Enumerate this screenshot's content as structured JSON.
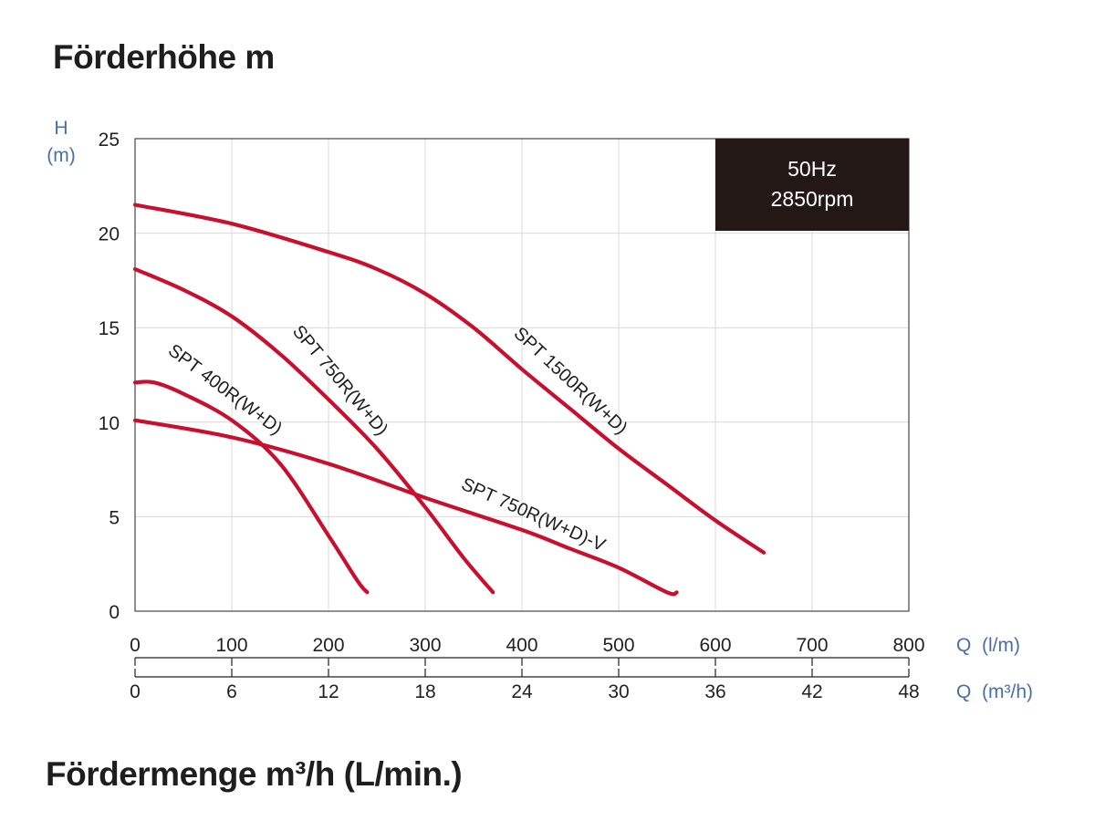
{
  "page": {
    "top_title": "Förderhöhe m",
    "bottom_title": "Fördermenge m³/h (L/min.)"
  },
  "chart_data": {
    "type": "line",
    "y_axis": {
      "label_line1": "H",
      "label_line2": "(m)",
      "range": [
        0,
        25
      ],
      "ticks": [
        0,
        5,
        10,
        15,
        20,
        25
      ]
    },
    "x_axis_primary": {
      "label": "Q  (l/m)",
      "range": [
        0,
        800
      ],
      "ticks": [
        0,
        100,
        200,
        300,
        400,
        500,
        600,
        700,
        800
      ]
    },
    "x_axis_secondary": {
      "label": "Q  (m³/h)",
      "range": [
        0,
        48
      ],
      "ticks": [
        0,
        6,
        12,
        18,
        24,
        30,
        36,
        42,
        48
      ]
    },
    "grid": true,
    "info_box": {
      "line1": "50Hz",
      "line2": "2850rpm",
      "background": "#231815",
      "text_color": "#ffffff",
      "position": "top-right"
    },
    "axis_label_color": "#4a6ea8",
    "series": [
      {
        "name": "SPT 400R(W+D)",
        "color": "#c8102e",
        "points": [
          [
            0,
            12.1
          ],
          [
            20,
            12.1
          ],
          [
            50,
            11.5
          ],
          [
            100,
            10.1
          ],
          [
            150,
            7.8
          ],
          [
            200,
            4.0
          ],
          [
            230,
            1.6
          ],
          [
            240,
            1.0
          ]
        ]
      },
      {
        "name": "SPT 750R(W+D)",
        "color": "#c8102e",
        "points": [
          [
            0,
            18.1
          ],
          [
            50,
            17.0
          ],
          [
            100,
            15.6
          ],
          [
            150,
            13.6
          ],
          [
            200,
            11.2
          ],
          [
            250,
            8.6
          ],
          [
            300,
            5.5
          ],
          [
            340,
            2.8
          ],
          [
            370,
            1.0
          ]
        ]
      },
      {
        "name": "SPT 750R(W+D)-V",
        "color": "#c8102e",
        "points": [
          [
            0,
            10.1
          ],
          [
            100,
            9.2
          ],
          [
            200,
            7.8
          ],
          [
            300,
            6.0
          ],
          [
            400,
            4.3
          ],
          [
            450,
            3.3
          ],
          [
            500,
            2.3
          ],
          [
            550,
            1.0
          ],
          [
            560,
            1.0
          ]
        ]
      },
      {
        "name": "SPT 1500R(W+D)",
        "color": "#c8102e",
        "points": [
          [
            0,
            21.5
          ],
          [
            100,
            20.5
          ],
          [
            200,
            19.0
          ],
          [
            250,
            18.1
          ],
          [
            300,
            16.8
          ],
          [
            350,
            15.0
          ],
          [
            400,
            12.8
          ],
          [
            450,
            10.7
          ],
          [
            500,
            8.6
          ],
          [
            550,
            6.7
          ],
          [
            600,
            4.8
          ],
          [
            650,
            3.1
          ]
        ]
      }
    ],
    "annotations": [
      {
        "text": "SPT 400R(W+D)",
        "series": 0
      },
      {
        "text": "SPT 750R(W+D)",
        "series": 1
      },
      {
        "text": "SPT 750R(W+D)-V",
        "series": 2
      },
      {
        "text": "SPT 1500R(W+D)",
        "series": 3
      }
    ]
  }
}
